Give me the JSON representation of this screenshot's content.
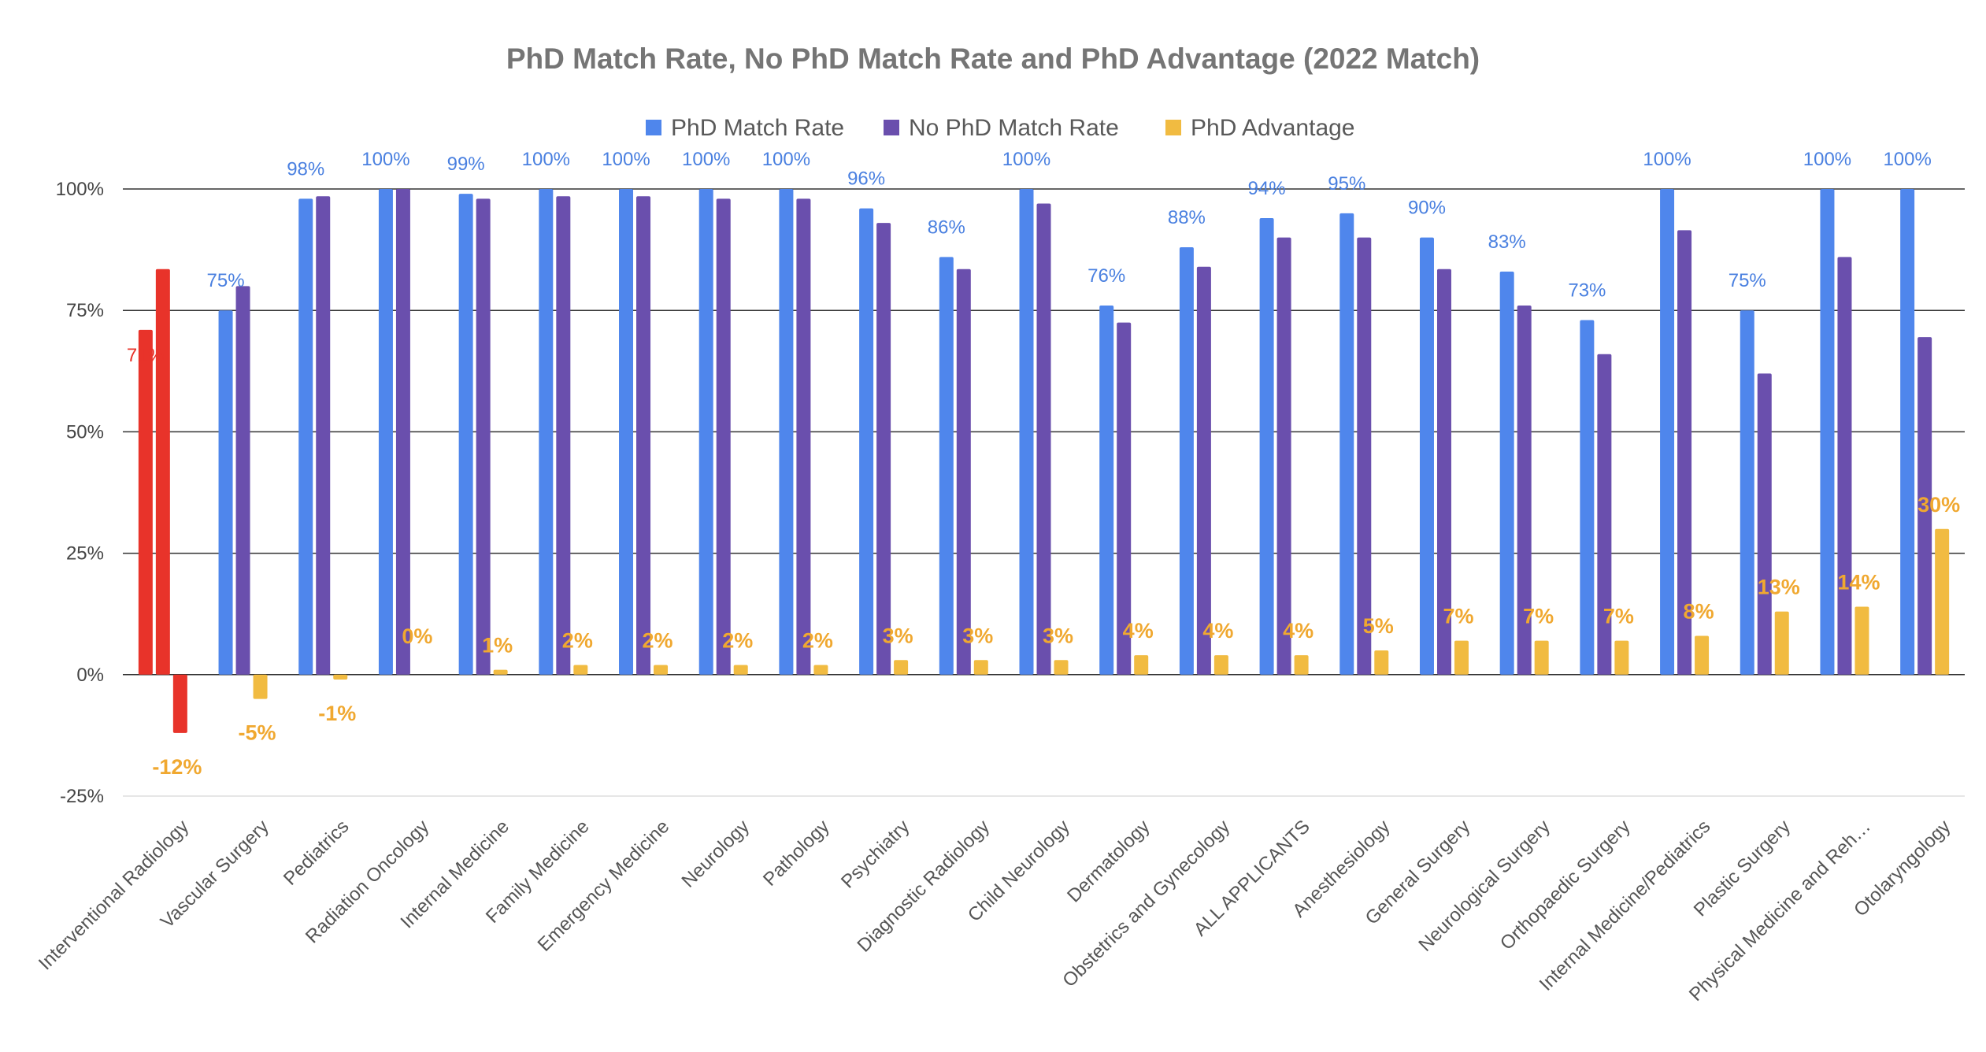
{
  "chart_data": {
    "type": "bar",
    "title": "PhD Match Rate, No PhD Match Rate and PhD Advantage (2022 Match)",
    "ylim": [
      -25,
      100
    ],
    "yticks": [
      100,
      75,
      50,
      25,
      0,
      -25
    ],
    "ytick_labels": [
      "100%",
      "75%",
      "50%",
      "25%",
      "0%",
      "-25%"
    ],
    "grid": true,
    "legend_position": "top-center",
    "categories": [
      "Interventional Radiology",
      "Vascular Surgery",
      "Pediatrics",
      "Radiation Oncology",
      "Internal Medicine",
      "Family Medicine",
      "Emergency Medicine",
      "Neurology",
      "Pathology",
      "Psychiatry",
      "Diagnostic Radiology",
      "Child Neurology",
      "Dermatology",
      "Obstetrics and Gynecology",
      "ALL APPLICANTS",
      "Anesthesiology",
      "General Surgery",
      "Neurological Surgery",
      "Orthopaedic Surgery",
      "Internal Medicine/Pediatrics",
      "Plastic Surgery",
      "Physical Medicine and Reh…",
      "Otolaryngology"
    ],
    "series": [
      {
        "name": "PhD Match Rate",
        "color": "#4f86ec",
        "values": [
          71,
          75,
          98,
          100,
          99,
          100,
          100,
          100,
          100,
          96,
          86,
          100,
          76,
          88,
          94,
          95,
          90,
          83,
          73,
          100,
          75,
          100,
          100
        ],
        "labels": [
          "71%",
          "75%",
          "98%",
          "100%",
          "99%",
          "100%",
          "100%",
          "100%",
          "100%",
          "96%",
          "86%",
          "100%",
          "76%",
          "88%",
          "94%",
          "95%",
          "90%",
          "83%",
          "73%",
          "100%",
          "75%",
          "100%",
          "100%"
        ]
      },
      {
        "name": "No PhD Match Rate",
        "color": "#6a4fad",
        "values": [
          83.5,
          80,
          98.5,
          100,
          98,
          98.5,
          98.5,
          98,
          98,
          93,
          83.5,
          97,
          72.5,
          84,
          90,
          90,
          83.5,
          76,
          66,
          91.5,
          62,
          86,
          69.5
        ],
        "labels": []
      },
      {
        "name": "PhD Advantage",
        "color": "#f1bb41",
        "values": [
          -12,
          -5,
          -1,
          0,
          1,
          2,
          2,
          2,
          2,
          3,
          3,
          3,
          4,
          4,
          4,
          5,
          7,
          7,
          7,
          8,
          13,
          14,
          30
        ],
        "labels": [
          "-12%",
          "-5%",
          "-1%",
          "0%",
          "1%",
          "2%",
          "2%",
          "2%",
          "2%",
          "3%",
          "3%",
          "3%",
          "4%",
          "4%",
          "4%",
          "5%",
          "7%",
          "7%",
          "7%",
          "8%",
          "13%",
          "14%",
          "30%"
        ]
      }
    ],
    "highlight": {
      "category_index": 0,
      "color": "#e8332a"
    }
  }
}
